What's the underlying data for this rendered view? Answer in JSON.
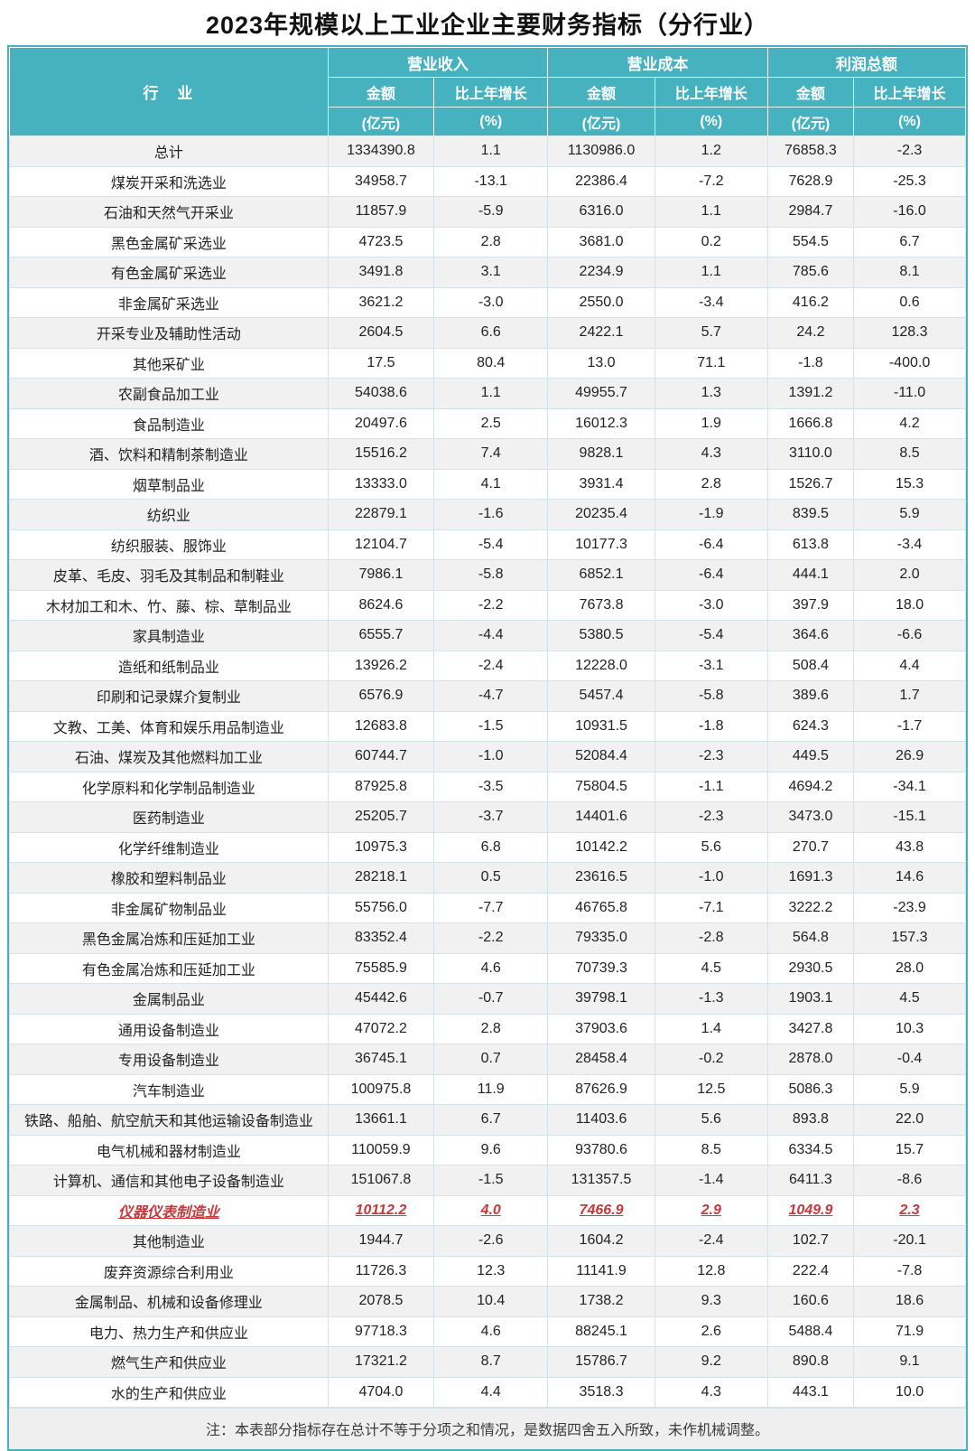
{
  "title": "2023年规模以上工业企业主要财务指标（分行业）",
  "chart_data": {
    "type": "table",
    "title": "2023年规模以上工业企业主要财务指标（分行业）",
    "header": {
      "industry": "行　业",
      "groups": [
        {
          "label": "营业收入"
        },
        {
          "label": "营业成本"
        },
        {
          "label": "利润总额"
        }
      ],
      "amount_label": "金额",
      "growth_label": "比上年增长",
      "amount_unit": "(亿元)",
      "growth_unit": "(%)"
    },
    "columns": [
      "行业",
      "营业收入金额(亿元)",
      "营业收入比上年增长(%)",
      "营业成本金额(亿元)",
      "营业成本比上年增长(%)",
      "利润总额金额(亿元)",
      "利润总额比上年增长(%)"
    ],
    "rows": [
      {
        "industry": "总计",
        "values": [
          "1334390.8",
          "1.1",
          "1130986.0",
          "1.2",
          "76858.3",
          "-2.3"
        ],
        "highlight": false
      },
      {
        "industry": "煤炭开采和洗选业",
        "values": [
          "34958.7",
          "-13.1",
          "22386.4",
          "-7.2",
          "7628.9",
          "-25.3"
        ],
        "highlight": false
      },
      {
        "industry": "石油和天然气开采业",
        "values": [
          "11857.9",
          "-5.9",
          "6316.0",
          "1.1",
          "2984.7",
          "-16.0"
        ],
        "highlight": false
      },
      {
        "industry": "黑色金属矿采选业",
        "values": [
          "4723.5",
          "2.8",
          "3681.0",
          "0.2",
          "554.5",
          "6.7"
        ],
        "highlight": false
      },
      {
        "industry": "有色金属矿采选业",
        "values": [
          "3491.8",
          "3.1",
          "2234.9",
          "1.1",
          "785.6",
          "8.1"
        ],
        "highlight": false
      },
      {
        "industry": "非金属矿采选业",
        "values": [
          "3621.2",
          "-3.0",
          "2550.0",
          "-3.4",
          "416.2",
          "0.6"
        ],
        "highlight": false
      },
      {
        "industry": "开采专业及辅助性活动",
        "values": [
          "2604.5",
          "6.6",
          "2422.1",
          "5.7",
          "24.2",
          "128.3"
        ],
        "highlight": false
      },
      {
        "industry": "其他采矿业",
        "values": [
          "17.5",
          "80.4",
          "13.0",
          "71.1",
          "-1.8",
          "-400.0"
        ],
        "highlight": false
      },
      {
        "industry": "农副食品加工业",
        "values": [
          "54038.6",
          "1.1",
          "49955.7",
          "1.3",
          "1391.2",
          "-11.0"
        ],
        "highlight": false
      },
      {
        "industry": "食品制造业",
        "values": [
          "20497.6",
          "2.5",
          "16012.3",
          "1.9",
          "1666.8",
          "4.2"
        ],
        "highlight": false
      },
      {
        "industry": "酒、饮料和精制茶制造业",
        "values": [
          "15516.2",
          "7.4",
          "9828.1",
          "4.3",
          "3110.0",
          "8.5"
        ],
        "highlight": false
      },
      {
        "industry": "烟草制品业",
        "values": [
          "13333.0",
          "4.1",
          "3931.4",
          "2.8",
          "1526.7",
          "15.3"
        ],
        "highlight": false
      },
      {
        "industry": "纺织业",
        "values": [
          "22879.1",
          "-1.6",
          "20235.4",
          "-1.9",
          "839.5",
          "5.9"
        ],
        "highlight": false
      },
      {
        "industry": "纺织服装、服饰业",
        "values": [
          "12104.7",
          "-5.4",
          "10177.3",
          "-6.4",
          "613.8",
          "-3.4"
        ],
        "highlight": false
      },
      {
        "industry": "皮革、毛皮、羽毛及其制品和制鞋业",
        "values": [
          "7986.1",
          "-5.8",
          "6852.1",
          "-6.4",
          "444.1",
          "2.0"
        ],
        "highlight": false
      },
      {
        "industry": "木材加工和木、竹、藤、棕、草制品业",
        "values": [
          "8624.6",
          "-2.2",
          "7673.8",
          "-3.0",
          "397.9",
          "18.0"
        ],
        "highlight": false
      },
      {
        "industry": "家具制造业",
        "values": [
          "6555.7",
          "-4.4",
          "5380.5",
          "-5.4",
          "364.6",
          "-6.6"
        ],
        "highlight": false
      },
      {
        "industry": "造纸和纸制品业",
        "values": [
          "13926.2",
          "-2.4",
          "12228.0",
          "-3.1",
          "508.4",
          "4.4"
        ],
        "highlight": false
      },
      {
        "industry": "印刷和记录媒介复制业",
        "values": [
          "6576.9",
          "-4.7",
          "5457.4",
          "-5.8",
          "389.6",
          "1.7"
        ],
        "highlight": false
      },
      {
        "industry": "文教、工美、体育和娱乐用品制造业",
        "values": [
          "12683.8",
          "-1.5",
          "10931.5",
          "-1.8",
          "624.3",
          "-1.7"
        ],
        "highlight": false
      },
      {
        "industry": "石油、煤炭及其他燃料加工业",
        "values": [
          "60744.7",
          "-1.0",
          "52084.4",
          "-2.3",
          "449.5",
          "26.9"
        ],
        "highlight": false
      },
      {
        "industry": "化学原料和化学制品制造业",
        "values": [
          "87925.8",
          "-3.5",
          "75804.5",
          "-1.1",
          "4694.2",
          "-34.1"
        ],
        "highlight": false
      },
      {
        "industry": "医药制造业",
        "values": [
          "25205.7",
          "-3.7",
          "14401.6",
          "-2.3",
          "3473.0",
          "-15.1"
        ],
        "highlight": false
      },
      {
        "industry": "化学纤维制造业",
        "values": [
          "10975.3",
          "6.8",
          "10142.2",
          "5.6",
          "270.7",
          "43.8"
        ],
        "highlight": false
      },
      {
        "industry": "橡胶和塑料制品业",
        "values": [
          "28218.1",
          "0.5",
          "23616.5",
          "-1.0",
          "1691.3",
          "14.6"
        ],
        "highlight": false
      },
      {
        "industry": "非金属矿物制品业",
        "values": [
          "55756.0",
          "-7.7",
          "46765.8",
          "-7.1",
          "3222.2",
          "-23.9"
        ],
        "highlight": false
      },
      {
        "industry": "黑色金属冶炼和压延加工业",
        "values": [
          "83352.4",
          "-2.2",
          "79335.0",
          "-2.8",
          "564.8",
          "157.3"
        ],
        "highlight": false
      },
      {
        "industry": "有色金属冶炼和压延加工业",
        "values": [
          "75585.9",
          "4.6",
          "70739.3",
          "4.5",
          "2930.5",
          "28.0"
        ],
        "highlight": false
      },
      {
        "industry": "金属制品业",
        "values": [
          "45442.6",
          "-0.7",
          "39798.1",
          "-1.3",
          "1903.1",
          "4.5"
        ],
        "highlight": false
      },
      {
        "industry": "通用设备制造业",
        "values": [
          "47072.2",
          "2.8",
          "37903.6",
          "1.4",
          "3427.8",
          "10.3"
        ],
        "highlight": false
      },
      {
        "industry": "专用设备制造业",
        "values": [
          "36745.1",
          "0.7",
          "28458.4",
          "-0.2",
          "2878.0",
          "-0.4"
        ],
        "highlight": false
      },
      {
        "industry": "汽车制造业",
        "values": [
          "100975.8",
          "11.9",
          "87626.9",
          "12.5",
          "5086.3",
          "5.9"
        ],
        "highlight": false
      },
      {
        "industry": "铁路、船舶、航空航天和其他运输设备制造业",
        "values": [
          "13661.1",
          "6.7",
          "11403.6",
          "5.6",
          "893.8",
          "22.0"
        ],
        "highlight": false
      },
      {
        "industry": "电气机械和器材制造业",
        "values": [
          "110059.9",
          "9.6",
          "93780.6",
          "8.5",
          "6334.5",
          "15.7"
        ],
        "highlight": false
      },
      {
        "industry": "计算机、通信和其他电子设备制造业",
        "values": [
          "151067.8",
          "-1.5",
          "131357.5",
          "-1.4",
          "6411.3",
          "-8.6"
        ],
        "highlight": false
      },
      {
        "industry": "仪器仪表制造业",
        "values": [
          "10112.2",
          "4.0",
          "7466.9",
          "2.9",
          "1049.9",
          "2.3"
        ],
        "highlight": true
      },
      {
        "industry": "其他制造业",
        "values": [
          "1944.7",
          "-2.6",
          "1604.2",
          "-2.4",
          "102.7",
          "-20.1"
        ],
        "highlight": false
      },
      {
        "industry": "废弃资源综合利用业",
        "values": [
          "11726.3",
          "12.3",
          "11141.9",
          "12.8",
          "222.4",
          "-7.8"
        ],
        "highlight": false
      },
      {
        "industry": "金属制品、机械和设备修理业",
        "values": [
          "2078.5",
          "10.4",
          "1738.2",
          "9.3",
          "160.6",
          "18.6"
        ],
        "highlight": false
      },
      {
        "industry": "电力、热力生产和供应业",
        "values": [
          "97718.3",
          "4.6",
          "88245.1",
          "2.6",
          "5488.4",
          "71.9"
        ],
        "highlight": false
      },
      {
        "industry": "燃气生产和供应业",
        "values": [
          "17321.2",
          "8.7",
          "15786.7",
          "9.2",
          "890.8",
          "9.1"
        ],
        "highlight": false
      },
      {
        "industry": "水的生产和供应业",
        "values": [
          "4704.0",
          "4.4",
          "3518.3",
          "4.3",
          "443.1",
          "10.0"
        ],
        "highlight": false
      }
    ],
    "note": "注：本表部分指标存在总计不等于分项之和情况，是数据四舍五入所致，未作机械调整。",
    "highlighted_row": "仪器仪表制造业",
    "layout_hints": {
      "grid": true,
      "stripe_odd_rows": true
    }
  },
  "colors": {
    "header_bg": "#46b2bf",
    "border": "#46b2bf",
    "grid_line": "#d2e4e8",
    "stripe": "#f1f1f1",
    "highlight_text": "#c8393c",
    "note_bg": "#efefef"
  }
}
